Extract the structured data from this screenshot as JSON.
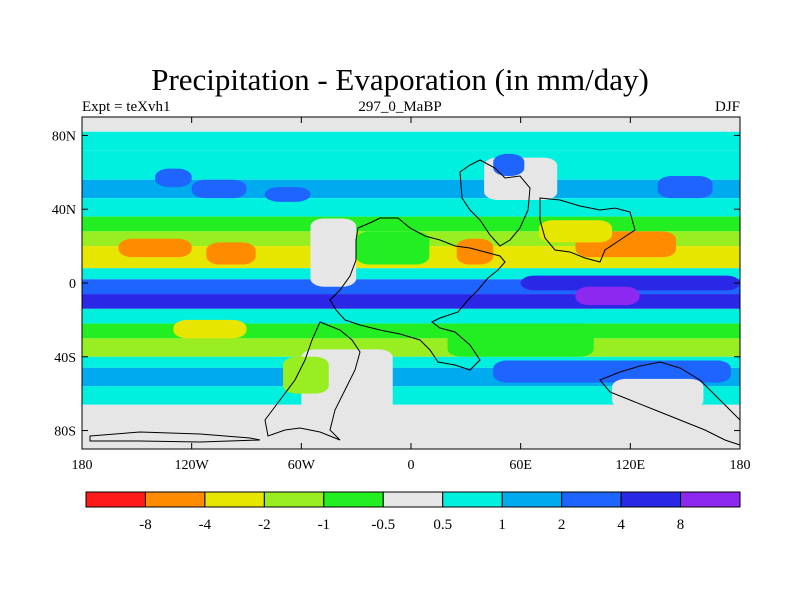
{
  "header": {
    "title": "Precipitation - Evaporation (in mm/day)",
    "left": "Expt = teXvh1",
    "center": "297_0_MaBP",
    "right": "DJF"
  },
  "chart_data": {
    "type": "heatmap",
    "title": "Precipitation - Evaporation (in mm/day)",
    "xlabel": "",
    "ylabel": "",
    "xlim": [
      -180,
      180
    ],
    "ylim": [
      -90,
      90
    ],
    "x_ticks": [
      {
        "value": -180,
        "label": "180"
      },
      {
        "value": -120,
        "label": "120W"
      },
      {
        "value": -60,
        "label": "60W"
      },
      {
        "value": 0,
        "label": "0"
      },
      {
        "value": 60,
        "label": "60E"
      },
      {
        "value": 120,
        "label": "120E"
      },
      {
        "value": 180,
        "label": "180"
      }
    ],
    "y_ticks": [
      {
        "value": 80,
        "label": "80N"
      },
      {
        "value": 40,
        "label": "40N"
      },
      {
        "value": 0,
        "label": "0"
      },
      {
        "value": -40,
        "label": "40S"
      },
      {
        "value": -80,
        "label": "80S"
      }
    ],
    "colorbar": {
      "bins": [
        {
          "color": "#ff1a1a"
        },
        {
          "color": "#ff8c00"
        },
        {
          "color": "#e6e600"
        },
        {
          "color": "#99ee22"
        },
        {
          "color": "#22ee22"
        },
        {
          "color": "#e6e6e6"
        },
        {
          "color": "#00f0e0"
        },
        {
          "color": "#00aaee"
        },
        {
          "color": "#1e64ff"
        },
        {
          "color": "#2a28e6"
        },
        {
          "color": "#8c28f0"
        }
      ],
      "levels": [
        "-8",
        "-4",
        "-2",
        "-1",
        "-0.5",
        "0.5",
        "1",
        "2",
        "4",
        "8"
      ]
    },
    "zonal_bands": [
      {
        "lat": [
          82,
          90
        ],
        "bin": 5
      },
      {
        "lat": [
          72,
          82
        ],
        "bin": 6
      },
      {
        "lat": [
          56,
          72
        ],
        "bin": 6
      },
      {
        "lat": [
          46,
          56
        ],
        "bin": 7
      },
      {
        "lat": [
          36,
          46
        ],
        "bin": 6
      },
      {
        "lat": [
          28,
          36
        ],
        "bin": 4
      },
      {
        "lat": [
          20,
          28
        ],
        "bin": 3
      },
      {
        "lat": [
          8,
          20
        ],
        "bin": 2
      },
      {
        "lat": [
          2,
          8
        ],
        "bin": 6
      },
      {
        "lat": [
          -6,
          2
        ],
        "bin": 8
      },
      {
        "lat": [
          -14,
          -6
        ],
        "bin": 9
      },
      {
        "lat": [
          -22,
          -14
        ],
        "bin": 6
      },
      {
        "lat": [
          -30,
          -22
        ],
        "bin": 4
      },
      {
        "lat": [
          -40,
          -30
        ],
        "bin": 3
      },
      {
        "lat": [
          -46,
          -40
        ],
        "bin": 6
      },
      {
        "lat": [
          -56,
          -46
        ],
        "bin": 7
      },
      {
        "lat": [
          -66,
          -56
        ],
        "bin": 6
      },
      {
        "lat": [
          -78,
          -66
        ],
        "bin": 5
      },
      {
        "lat": [
          -90,
          -78
        ],
        "bin": 5
      }
    ],
    "regions": [
      {
        "lon": [
          -140,
          -120
        ],
        "lat": [
          52,
          62
        ],
        "bin": 8
      },
      {
        "lon": [
          -120,
          -90
        ],
        "lat": [
          46,
          56
        ],
        "bin": 8
      },
      {
        "lon": [
          -80,
          -55
        ],
        "lat": [
          44,
          52
        ],
        "bin": 8
      },
      {
        "lon": [
          135,
          165
        ],
        "lat": [
          46,
          58
        ],
        "bin": 8
      },
      {
        "lon": [
          -160,
          -120
        ],
        "lat": [
          14,
          24
        ],
        "bin": 1
      },
      {
        "lon": [
          -112,
          -85
        ],
        "lat": [
          10,
          22
        ],
        "bin": 1
      },
      {
        "lon": [
          25,
          45
        ],
        "lat": [
          10,
          24
        ],
        "bin": 1
      },
      {
        "lon": [
          90,
          145
        ],
        "lat": [
          14,
          28
        ],
        "bin": 1
      },
      {
        "lon": [
          -55,
          -30
        ],
        "lat": [
          -2,
          35
        ],
        "bin": 5
      },
      {
        "lon": [
          -30,
          10
        ],
        "lat": [
          10,
          28
        ],
        "bin": 4
      },
      {
        "lon": [
          40,
          80
        ],
        "lat": [
          45,
          68
        ],
        "bin": 5
      },
      {
        "lon": [
          45,
          62
        ],
        "lat": [
          58,
          70
        ],
        "bin": 8
      },
      {
        "lon": [
          70,
          110
        ],
        "lat": [
          22,
          34
        ],
        "bin": 2
      },
      {
        "lon": [
          60,
          180
        ],
        "lat": [
          -4,
          4
        ],
        "bin": 9
      },
      {
        "lon": [
          90,
          125
        ],
        "lat": [
          -12,
          -2
        ],
        "bin": 10
      },
      {
        "lon": [
          -60,
          -10
        ],
        "lat": [
          -74,
          -36
        ],
        "bin": 5
      },
      {
        "lon": [
          -70,
          -45
        ],
        "lat": [
          -60,
          -40
        ],
        "bin": 3
      },
      {
        "lon": [
          20,
          100
        ],
        "lat": [
          -40,
          -22
        ],
        "bin": 4
      },
      {
        "lon": [
          45,
          175
        ],
        "lat": [
          -54,
          -42
        ],
        "bin": 8
      },
      {
        "lon": [
          110,
          160
        ],
        "lat": [
          -68,
          -52
        ],
        "bin": 5
      },
      {
        "lon": [
          -130,
          -90
        ],
        "lat": [
          -30,
          -20
        ],
        "bin": 2
      }
    ]
  }
}
